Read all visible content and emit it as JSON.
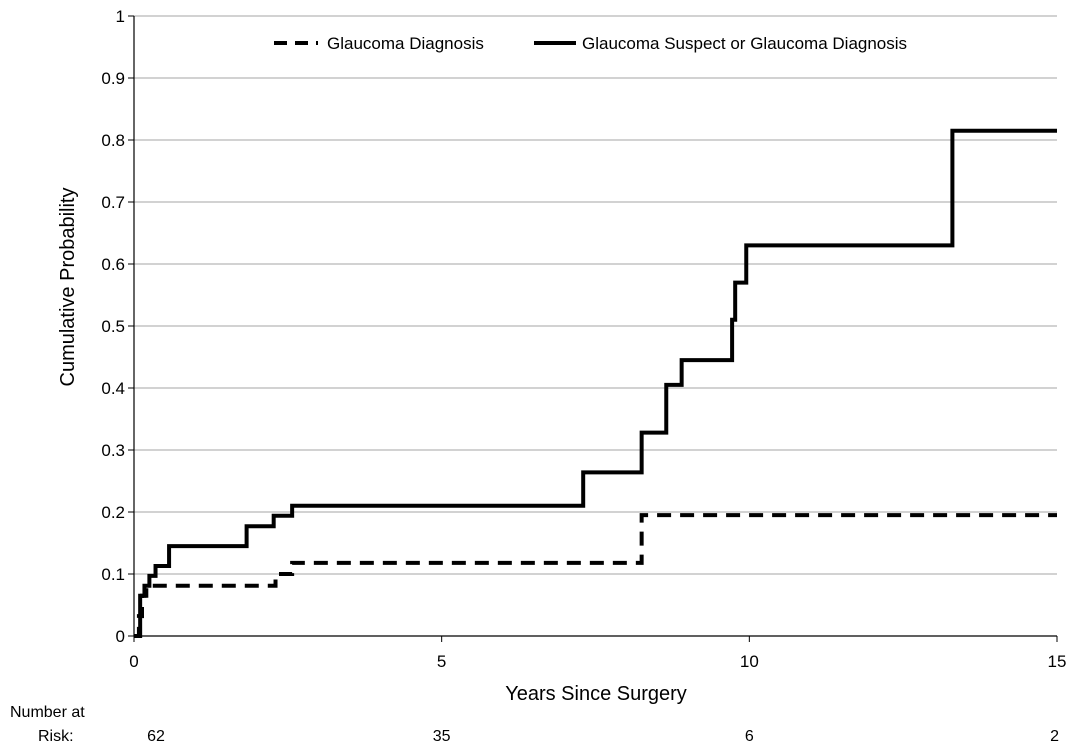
{
  "chart_data": {
    "type": "line",
    "step": true,
    "xlabel": "Years Since Surgery",
    "ylabel": "Cumulative Probability",
    "xlim": [
      0,
      15
    ],
    "ylim": [
      0,
      1
    ],
    "x_ticks": [
      0,
      5,
      10,
      15
    ],
    "y_ticks": [
      0,
      0.1,
      0.2,
      0.3,
      0.4,
      0.5,
      0.6,
      0.7,
      0.8,
      0.9,
      1
    ],
    "y_tick_labels": [
      "0",
      "0.1",
      "0.2",
      "0.3",
      "0.4",
      "0.5",
      "0.6",
      "0.7",
      "0.8",
      "0.9",
      "1"
    ],
    "x_tick_labels": [
      "0",
      "5",
      "10",
      "15"
    ],
    "grid": "horizontal",
    "legend_position": "top",
    "series": [
      {
        "name": "Glaucoma Diagnosis",
        "style": "dashed",
        "color": "#000000",
        "x": [
          0,
          0.08,
          0.13,
          0.2,
          0.3,
          2.3,
          2.57,
          8.25,
          15
        ],
        "y": [
          0,
          0.032,
          0.065,
          0.081,
          0.081,
          0.1,
          0.118,
          0.195,
          0.195
        ]
      },
      {
        "name": "Glaucoma Suspect or Glaucoma Diagnosis",
        "style": "solid",
        "color": "#000000",
        "x": [
          0,
          0.1,
          0.17,
          0.25,
          0.35,
          0.57,
          1.83,
          2.27,
          2.57,
          7.3,
          8.25,
          8.65,
          8.9,
          9.72,
          9.77,
          9.95,
          13.3,
          15
        ],
        "y": [
          0,
          0.065,
          0.081,
          0.097,
          0.113,
          0.145,
          0.177,
          0.194,
          0.21,
          0.264,
          0.328,
          0.405,
          0.445,
          0.51,
          0.57,
          0.63,
          0.815,
          0.815
        ]
      }
    ],
    "risk_table": {
      "label_line1": "Number at",
      "label_line2": "Risk:",
      "x": [
        0,
        5,
        10,
        15
      ],
      "values": [
        "62",
        "35",
        "6",
        "2"
      ]
    }
  }
}
